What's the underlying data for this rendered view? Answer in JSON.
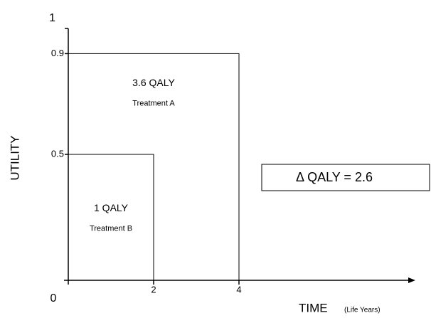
{
  "chart_data": {
    "type": "qaly",
    "ylabel": "UTILITY",
    "xlabel": "TIME",
    "xlabel_unit": "(Life Years)",
    "series": [
      {
        "name": "Treatment A",
        "label": "3.6 QALY",
        "x": 4,
        "y": 0.9
      },
      {
        "name": "Treatment B",
        "label": "1 QALY",
        "x": 2,
        "y": 0.5
      }
    ],
    "annotation": "Δ QALY = 2.6",
    "xlim": [
      0,
      8
    ],
    "xticks": [
      0,
      2,
      4
    ],
    "ylim": [
      0,
      1
    ],
    "yticks": [
      0.5,
      0.9,
      1
    ]
  }
}
